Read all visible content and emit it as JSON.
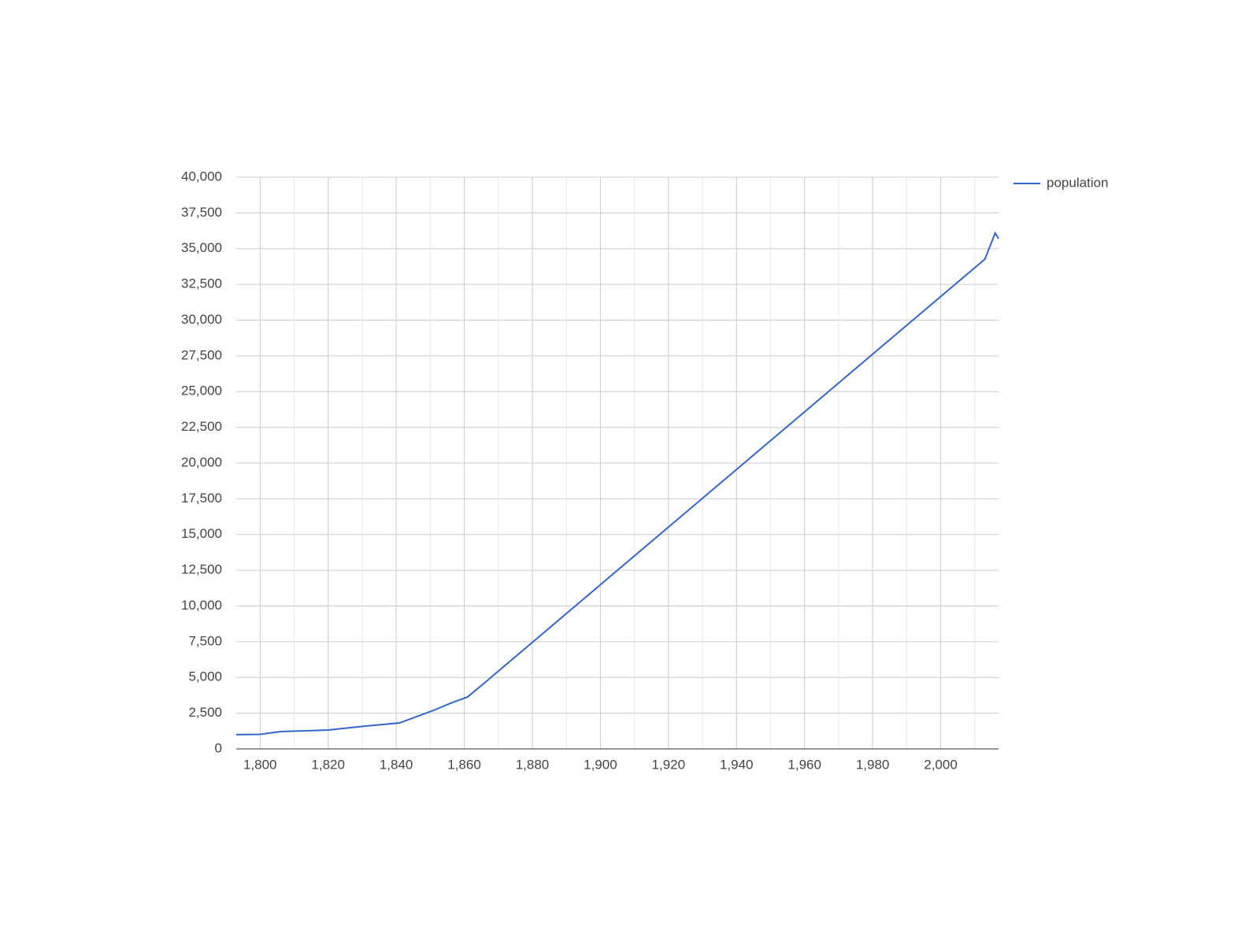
{
  "chart_data": {
    "type": "line",
    "x": [
      1793,
      1800,
      1806,
      1820,
      1831,
      1841,
      1851,
      1856,
      1861,
      1866,
      2013,
      2016,
      2017
    ],
    "series": [
      {
        "name": "population",
        "color": "#3366cc",
        "values": [
          1000,
          1020,
          1210,
          1320,
          1600,
          1820,
          2700,
          3200,
          3640,
          4630,
          34270,
          36090,
          35700
        ]
      }
    ],
    "xlim": [
      1793,
      2017
    ],
    "xticks": [
      {
        "value": 1800,
        "label": "1,800"
      },
      {
        "value": 1820,
        "label": "1,820"
      },
      {
        "value": 1840,
        "label": "1,840"
      },
      {
        "value": 1860,
        "label": "1,860"
      },
      {
        "value": 1880,
        "label": "1,880"
      },
      {
        "value": 1900,
        "label": "1,900"
      },
      {
        "value": 1920,
        "label": "1,920"
      },
      {
        "value": 1940,
        "label": "1,940"
      },
      {
        "value": 1960,
        "label": "1,960"
      },
      {
        "value": 1980,
        "label": "1,980"
      },
      {
        "value": 2000,
        "label": "2,000"
      }
    ],
    "ylim": [
      0,
      40000
    ],
    "yticks": [
      0,
      {
        "value": 2500,
        "label": "2,500"
      },
      {
        "value": 5000,
        "label": "5,000"
      },
      {
        "value": 7500,
        "label": "7,500"
      },
      {
        "value": 10000,
        "label": "10,000"
      },
      {
        "value": 12500,
        "label": "12,500"
      },
      {
        "value": 15000,
        "label": "15,000"
      },
      {
        "value": 17500,
        "label": "17,500"
      },
      {
        "value": 20000,
        "label": "20,000"
      },
      {
        "value": 22500,
        "label": "22,500"
      },
      {
        "value": 25000,
        "label": "25,000"
      },
      {
        "value": 27500,
        "label": "27,500"
      },
      {
        "value": 30000,
        "label": "30,000"
      },
      {
        "value": 32500,
        "label": "32,500"
      },
      {
        "value": 35000,
        "label": "35,000"
      },
      {
        "value": 37500,
        "label": "37,500"
      },
      {
        "value": 40000,
        "label": "40,000"
      }
    ],
    "grid": true,
    "legend": "right"
  }
}
